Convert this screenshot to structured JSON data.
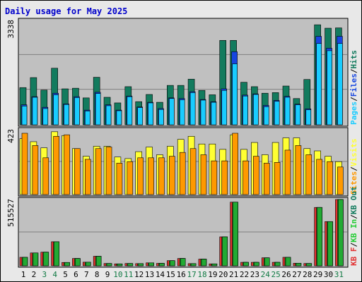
{
  "title": "Daily usage for May 2025",
  "colors": {
    "bg": "#e8e8e8",
    "panel": "#c0c0c0",
    "grid": "#808080",
    "hits": "#127b5e",
    "files": "#1746e0",
    "pages": "#19ccff",
    "visits": "#ffff33",
    "sites": "#ff9900",
    "kbf": "#e23131",
    "kbin": "#22cc33",
    "kbout": "#22aa33",
    "label_blue": "#1746e0",
    "label_green": "#127b5e",
    "weekend_green": "#117a44"
  },
  "axes": {
    "top_max": "3338",
    "mid_max": "423",
    "bot_max": "515527"
  },
  "legend": {
    "top": [
      "Pages",
      "/",
      "Files",
      "/",
      "Hits"
    ],
    "mid": [
      "Sites",
      "/",
      "Visits"
    ],
    "bot": [
      "KB F",
      "/",
      "KB In",
      "/",
      "KB Out"
    ]
  },
  "days": [
    "1",
    "2",
    "3",
    "4",
    "5",
    "6",
    "7",
    "8",
    "9",
    "10",
    "11",
    "12",
    "13",
    "14",
    "15",
    "16",
    "17",
    "18",
    "19",
    "20",
    "21",
    "22",
    "23",
    "24",
    "25",
    "26",
    "27",
    "28",
    "29",
    "30",
    "31"
  ],
  "weekend_days": [
    "3",
    "4",
    "10",
    "11",
    "17",
    "18",
    "24",
    "25",
    "31"
  ],
  "chart_data": [
    {
      "type": "bar",
      "title": "Daily usage for May 2025",
      "categories": [
        "1",
        "2",
        "3",
        "4",
        "5",
        "6",
        "7",
        "8",
        "9",
        "10",
        "11",
        "12",
        "13",
        "14",
        "15",
        "16",
        "17",
        "18",
        "19",
        "20",
        "21",
        "22",
        "23",
        "24",
        "25",
        "26",
        "27",
        "28",
        "29",
        "30",
        "31"
      ],
      "ylim": [
        0,
        3338
      ],
      "series": [
        {
          "name": "Hits",
          "values": [
            1190,
            1510,
            1110,
            1810,
            1150,
            1170,
            860,
            1520,
            880,
            700,
            1220,
            740,
            970,
            720,
            1260,
            1260,
            1460,
            1100,
            960,
            2700,
            2700,
            1360,
            1220,
            1010,
            1030,
            1240,
            840,
            1450,
            3200,
            3090,
            3100
          ]
        },
        {
          "name": "Files",
          "values": [
            640,
            900,
            560,
            1010,
            670,
            900,
            470,
            1040,
            640,
            470,
            920,
            570,
            720,
            520,
            860,
            840,
            1060,
            810,
            740,
            1150,
            2340,
            950,
            990,
            620,
            780,
            910,
            660,
            510,
            2830,
            2450,
            2830
          ]
        },
        {
          "name": "Pages",
          "values": [
            600,
            880,
            520,
            960,
            650,
            870,
            440,
            1000,
            610,
            450,
            900,
            550,
            700,
            490,
            840,
            800,
            1030,
            790,
            720,
            1100,
            1950,
            920,
            970,
            580,
            750,
            880,
            640,
            480,
            2600,
            2370,
            2600
          ]
        }
      ]
    },
    {
      "type": "bar",
      "categories": [
        "1",
        "2",
        "3",
        "4",
        "5",
        "6",
        "7",
        "8",
        "9",
        "10",
        "11",
        "12",
        "13",
        "14",
        "15",
        "16",
        "17",
        "18",
        "19",
        "20",
        "21",
        "22",
        "23",
        "24",
        "25",
        "26",
        "27",
        "28",
        "29",
        "30",
        "31"
      ],
      "ylim": [
        0,
        423
      ],
      "series": [
        {
          "name": "Visits",
          "values": [
            365,
            345,
            305,
            410,
            385,
            300,
            250,
            315,
            315,
            245,
            235,
            280,
            310,
            260,
            315,
            360,
            380,
            330,
            330,
            295,
            390,
            295,
            340,
            260,
            340,
            370,
            370,
            300,
            285,
            250,
            215
          ]
        },
        {
          "name": "Sites",
          "values": [
            400,
            320,
            240,
            380,
            390,
            300,
            230,
            300,
            310,
            205,
            215,
            240,
            240,
            240,
            250,
            275,
            300,
            260,
            220,
            220,
            400,
            220,
            250,
            205,
            210,
            290,
            320,
            260,
            230,
            215,
            180
          ]
        }
      ]
    },
    {
      "type": "bar",
      "categories": [
        "1",
        "2",
        "3",
        "4",
        "5",
        "6",
        "7",
        "8",
        "9",
        "10",
        "11",
        "12",
        "13",
        "14",
        "15",
        "16",
        "17",
        "18",
        "19",
        "20",
        "21",
        "22",
        "23",
        "24",
        "25",
        "26",
        "27",
        "28",
        "29",
        "30",
        "31"
      ],
      "ylim": [
        0,
        515527
      ],
      "series": [
        {
          "name": "KB F",
          "values": [
            66000,
            100000,
            106000,
            187000,
            26000,
            57000,
            28000,
            74000,
            18000,
            15000,
            18000,
            17000,
            23000,
            19000,
            40000,
            57000,
            17000,
            52000,
            15000,
            225000,
            495000,
            27000,
            27000,
            62000,
            27000,
            66000,
            20000,
            18000,
            454000,
            344000,
            515527
          ]
        },
        {
          "name": "KB In",
          "values": [
            66000,
            100000,
            106000,
            187000,
            26000,
            57000,
            28000,
            74000,
            18000,
            15000,
            18000,
            17000,
            23000,
            19000,
            40000,
            57000,
            17000,
            52000,
            15000,
            225000,
            495000,
            27000,
            27000,
            62000,
            27000,
            66000,
            20000,
            18000,
            454000,
            344000,
            515527
          ]
        },
        {
          "name": "KB Out",
          "values": [
            66000,
            100000,
            106000,
            187000,
            26000,
            57000,
            28000,
            74000,
            18000,
            15000,
            18000,
            17000,
            23000,
            19000,
            40000,
            57000,
            17000,
            52000,
            15000,
            225000,
            495000,
            27000,
            27000,
            62000,
            27000,
            66000,
            20000,
            18000,
            454000,
            344000,
            515527
          ]
        }
      ]
    }
  ]
}
